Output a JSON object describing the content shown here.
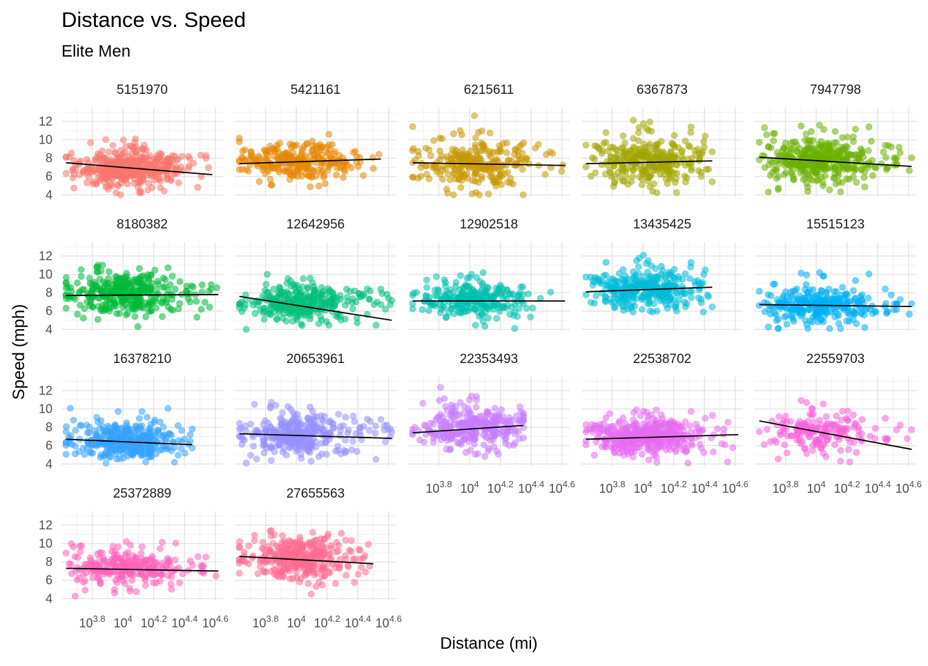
{
  "chart_data": {
    "type": "scatter",
    "title": "Distance vs. Speed",
    "subtitle": "Elite Men",
    "xlabel": "Distance (mi)",
    "ylabel": "Speed (mph)",
    "x_scale": "log10",
    "xlim_log10": [
      3.6,
      4.65
    ],
    "ylim": [
      3.8,
      13.5
    ],
    "y_ticks": [
      4,
      6,
      8,
      10,
      12
    ],
    "x_ticks": [
      {
        "exp": 3.8,
        "base": "10",
        "sup": "3.8"
      },
      {
        "exp": 4.0,
        "base": "10",
        "sup": "4"
      },
      {
        "exp": 4.2,
        "base": "10",
        "sup": "4.2"
      },
      {
        "exp": 4.4,
        "base": "10",
        "sup": "4.4"
      },
      {
        "exp": 4.6,
        "base": "10",
        "sup": "4.6"
      }
    ],
    "grid": true,
    "legend": "none",
    "panels": [
      {
        "id": "5151970",
        "color": "#F8766D",
        "x_range": [
          3.63,
          4.58
        ],
        "y_range": [
          4.0,
          10.1
        ],
        "y_mean": 6.9,
        "n": 420,
        "trend": [
          [
            3.63,
            7.5
          ],
          [
            4.58,
            6.2
          ]
        ]
      },
      {
        "id": "5421161",
        "color": "#E58700",
        "x_range": [
          3.63,
          4.55
        ],
        "y_range": [
          4.1,
          10.6
        ],
        "y_mean": 7.7,
        "n": 260,
        "trend": [
          [
            3.63,
            7.4
          ],
          [
            4.55,
            7.9
          ]
        ]
      },
      {
        "id": "6215611",
        "color": "#C99800",
        "x_range": [
          3.63,
          4.62
        ],
        "y_range": [
          4.0,
          13.0
        ],
        "y_mean": 7.4,
        "n": 260,
        "trend": [
          [
            3.63,
            7.5
          ],
          [
            4.62,
            7.2
          ]
        ]
      },
      {
        "id": "6367873",
        "color": "#A3A500",
        "x_range": [
          3.63,
          4.45
        ],
        "y_range": [
          4.1,
          12.5
        ],
        "y_mean": 7.7,
        "n": 300,
        "trend": [
          [
            3.63,
            7.4
          ],
          [
            4.45,
            7.7
          ]
        ]
      },
      {
        "id": "7947798",
        "color": "#6BB100",
        "x_range": [
          3.63,
          4.62
        ],
        "y_range": [
          4.1,
          11.6
        ],
        "y_mean": 7.8,
        "n": 380,
        "trend": [
          [
            3.63,
            8.1
          ],
          [
            4.62,
            7.1
          ]
        ]
      },
      {
        "id": "8180382",
        "color": "#00BA38",
        "x_range": [
          3.63,
          4.62
        ],
        "y_range": [
          4.1,
          11.0
        ],
        "y_mean": 7.9,
        "n": 360,
        "trend": [
          [
            3.63,
            7.7
          ],
          [
            4.62,
            7.8
          ]
        ]
      },
      {
        "id": "12642956",
        "color": "#00BF7D",
        "x_range": [
          3.63,
          4.62
        ],
        "y_range": [
          4.0,
          10.2
        ],
        "y_mean": 6.9,
        "n": 320,
        "trend": [
          [
            3.63,
            7.6
          ],
          [
            4.62,
            5.0
          ]
        ]
      },
      {
        "id": "12902518",
        "color": "#00C0AF",
        "x_range": [
          3.63,
          4.62
        ],
        "y_range": [
          4.1,
          10.6
        ],
        "y_mean": 7.2,
        "n": 260,
        "trend": [
          [
            3.63,
            7.1
          ],
          [
            4.62,
            7.1
          ]
        ]
      },
      {
        "id": "13435425",
        "color": "#00BCD8",
        "x_range": [
          3.63,
          4.45
        ],
        "y_range": [
          5.9,
          12.7
        ],
        "y_mean": 8.3,
        "n": 320,
        "trend": [
          [
            3.63,
            8.1
          ],
          [
            4.45,
            8.6
          ]
        ]
      },
      {
        "id": "15515123",
        "color": "#00B0F6",
        "x_range": [
          3.63,
          4.62
        ],
        "y_range": [
          4.1,
          10.2
        ],
        "y_mean": 6.6,
        "n": 300,
        "trend": [
          [
            3.63,
            6.7
          ],
          [
            4.62,
            6.5
          ]
        ]
      },
      {
        "id": "16378210",
        "color": "#35A2FF",
        "x_range": [
          3.63,
          4.45
        ],
        "y_range": [
          4.1,
          10.3
        ],
        "y_mean": 6.5,
        "n": 340,
        "trend": [
          [
            3.63,
            6.7
          ],
          [
            4.45,
            6.1
          ]
        ]
      },
      {
        "id": "20653961",
        "color": "#9590FF",
        "x_range": [
          3.63,
          4.62
        ],
        "y_range": [
          4.1,
          11.0
        ],
        "y_mean": 7.2,
        "n": 320,
        "trend": [
          [
            3.63,
            7.3
          ],
          [
            4.62,
            6.8
          ]
        ]
      },
      {
        "id": "22353493",
        "color": "#C77CFF",
        "x_range": [
          3.63,
          4.35
        ],
        "y_range": [
          4.5,
          12.6
        ],
        "y_mean": 7.9,
        "n": 280,
        "trend": [
          [
            3.63,
            7.4
          ],
          [
            4.35,
            8.2
          ]
        ]
      },
      {
        "id": "22538702",
        "color": "#E76BF3",
        "x_range": [
          3.63,
          4.62
        ],
        "y_range": [
          4.1,
          10.3
        ],
        "y_mean": 7.0,
        "n": 400,
        "trend": [
          [
            3.63,
            6.7
          ],
          [
            4.62,
            7.2
          ]
        ]
      },
      {
        "id": "22559703",
        "color": "#FA62DB",
        "x_range": [
          3.63,
          4.62
        ],
        "y_range": [
          4.1,
          11.0
        ],
        "y_mean": 7.5,
        "n": 180,
        "trend": [
          [
            3.63,
            8.7
          ],
          [
            4.62,
            5.6
          ]
        ]
      },
      {
        "id": "25372889",
        "color": "#FF62BC",
        "x_range": [
          3.63,
          4.62
        ],
        "y_range": [
          4.1,
          10.2
        ],
        "y_mean": 7.4,
        "n": 260,
        "trend": [
          [
            3.63,
            7.3
          ],
          [
            4.62,
            7.0
          ]
        ]
      },
      {
        "id": "27655563",
        "color": "#FF6C91",
        "x_range": [
          3.63,
          4.5
        ],
        "y_range": [
          4.3,
          11.4
        ],
        "y_mean": 8.4,
        "n": 340,
        "trend": [
          [
            3.63,
            8.6
          ],
          [
            4.5,
            7.8
          ]
        ]
      }
    ]
  }
}
